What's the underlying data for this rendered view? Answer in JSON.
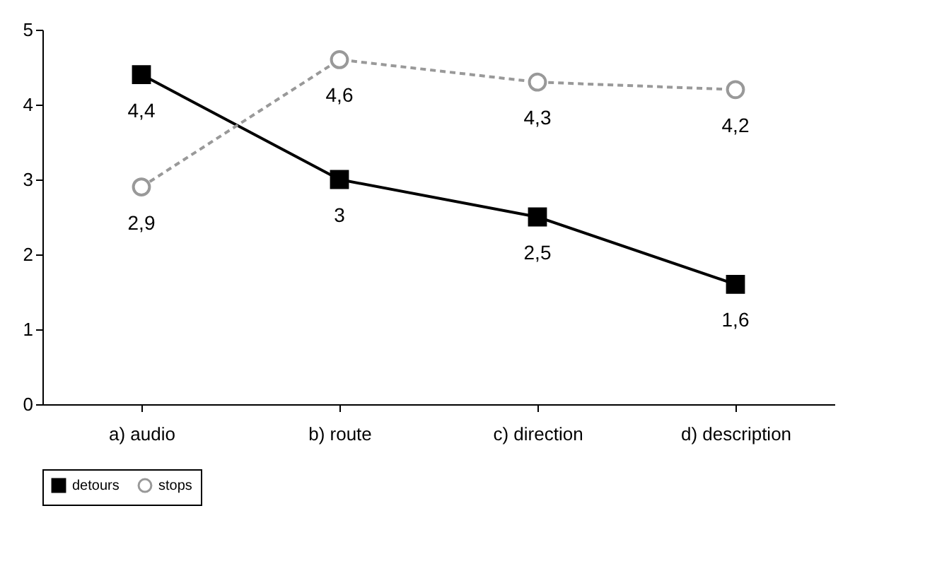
{
  "chart_data": {
    "type": "line",
    "categories": [
      "a) audio",
      "b) route",
      "c) direction",
      "d) description"
    ],
    "series": [
      {
        "name": "detours",
        "color": "#000000",
        "values": [
          4.4,
          3,
          2.5,
          1.6
        ],
        "value_labels": [
          "4,4",
          "3",
          "2,5",
          "1,6"
        ],
        "marker": "square",
        "line_style": "solid"
      },
      {
        "name": "stops",
        "color": "#999999",
        "values": [
          2.9,
          4.6,
          4.3,
          4.2
        ],
        "value_labels": [
          "2,9",
          "4,6",
          "4,3",
          "4,2"
        ],
        "marker": "circle",
        "line_style": "dashed"
      }
    ],
    "ylim": [
      0,
      5
    ],
    "yticks": [
      0,
      1,
      2,
      3,
      4,
      5
    ],
    "grid": false,
    "legend": "bottom"
  }
}
